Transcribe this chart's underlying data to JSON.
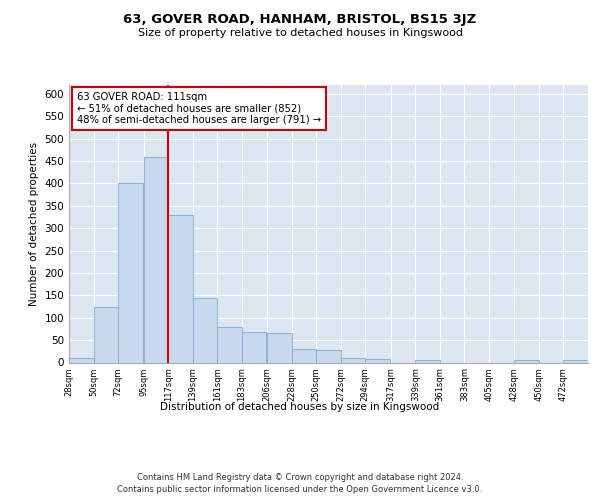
{
  "title": "63, GOVER ROAD, HANHAM, BRISTOL, BS15 3JZ",
  "subtitle": "Size of property relative to detached houses in Kingswood",
  "xlabel": "Distribution of detached houses by size in Kingswood",
  "ylabel": "Number of detached properties",
  "bar_color": "#c8d9ed",
  "bar_edge_color": "#7aaad0",
  "background_color": "#dce6f0",
  "grid_color": "#ffffff",
  "annotation_box_color": "#ffffff",
  "annotation_box_edge": "#cc0000",
  "red_line_color": "#cc0000",
  "annotation_line1": "63 GOVER ROAD: 111sqm",
  "annotation_line2": "← 51% of detached houses are smaller (852)",
  "annotation_line3": "48% of semi-detached houses are larger (791) →",
  "footer_line1": "Contains HM Land Registry data © Crown copyright and database right 2024.",
  "footer_line2": "Contains public sector information licensed under the Open Government Licence v3.0.",
  "bins": [
    28,
    50,
    72,
    95,
    117,
    139,
    161,
    183,
    206,
    228,
    250,
    272,
    294,
    317,
    339,
    361,
    383,
    405,
    428,
    450,
    472
  ],
  "bin_labels": [
    "28sqm",
    "50sqm",
    "72sqm",
    "95sqm",
    "117sqm",
    "139sqm",
    "161sqm",
    "183sqm",
    "206sqm",
    "228sqm",
    "250sqm",
    "272sqm",
    "294sqm",
    "317sqm",
    "339sqm",
    "361sqm",
    "383sqm",
    "405sqm",
    "428sqm",
    "450sqm",
    "472sqm"
  ],
  "bar_heights": [
    10,
    125,
    400,
    460,
    330,
    145,
    80,
    68,
    65,
    30,
    28,
    10,
    8,
    0,
    5,
    0,
    0,
    0,
    5,
    0,
    5
  ],
  "red_line_x": 117,
  "ylim": [
    0,
    620
  ],
  "yticks": [
    0,
    50,
    100,
    150,
    200,
    250,
    300,
    350,
    400,
    450,
    500,
    550,
    600
  ]
}
